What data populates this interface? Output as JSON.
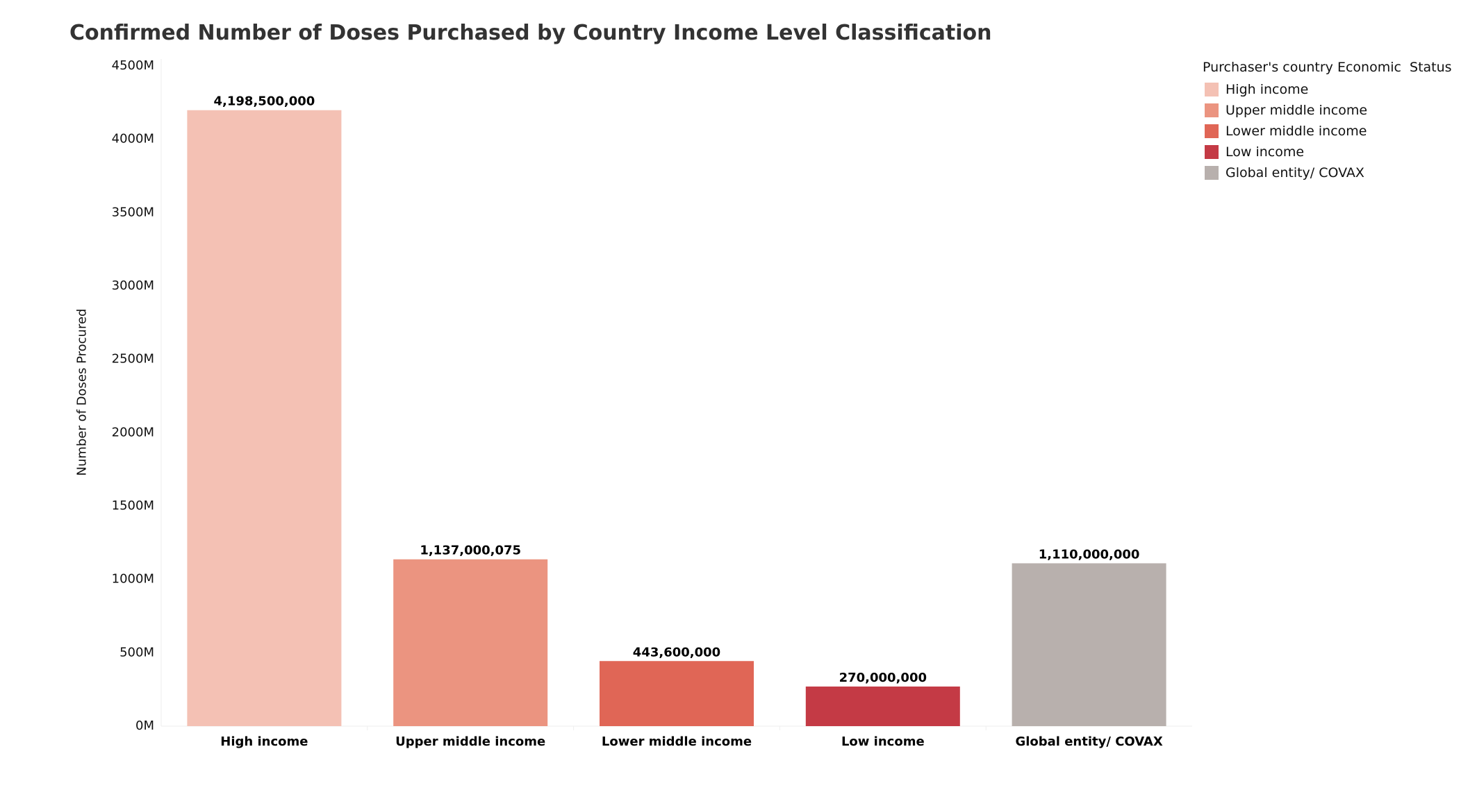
{
  "chart_data": {
    "type": "bar",
    "title": "Confirmed Number of Doses Purchased by Country Income Level Classification",
    "xlabel": "",
    "ylabel": "Number of Doses Procured",
    "ylim": [
      0,
      4500000000
    ],
    "yticks": [
      0,
      500000000,
      1000000000,
      1500000000,
      2000000000,
      2500000000,
      3000000000,
      3500000000,
      4000000000,
      4500000000
    ],
    "ytick_labels": [
      "0M",
      "500M",
      "1000M",
      "1500M",
      "2000M",
      "2500M",
      "3000M",
      "3500M",
      "4000M",
      "4500M"
    ],
    "categories": [
      "High income",
      "Upper middle income",
      "Lower middle income",
      "Low income",
      "Global entity/ COVAX"
    ],
    "values": [
      4198500000,
      1137000075,
      443600000,
      270000000,
      1110000000
    ],
    "data_labels": [
      "4,198,500,000",
      "1,137,000,075",
      "443,600,000",
      "270,000,000",
      "1,110,000,000"
    ],
    "colors": [
      "#f4c1b4",
      "#eb9480",
      "#e06656",
      "#c43a45",
      "#b8b0ad"
    ],
    "grid": false,
    "legend": {
      "title": "Purchaser's country Economic  Status",
      "position": "top-right",
      "items": [
        "High income",
        "Upper middle income",
        "Lower middle income",
        "Low income",
        "Global entity/ COVAX"
      ]
    }
  }
}
